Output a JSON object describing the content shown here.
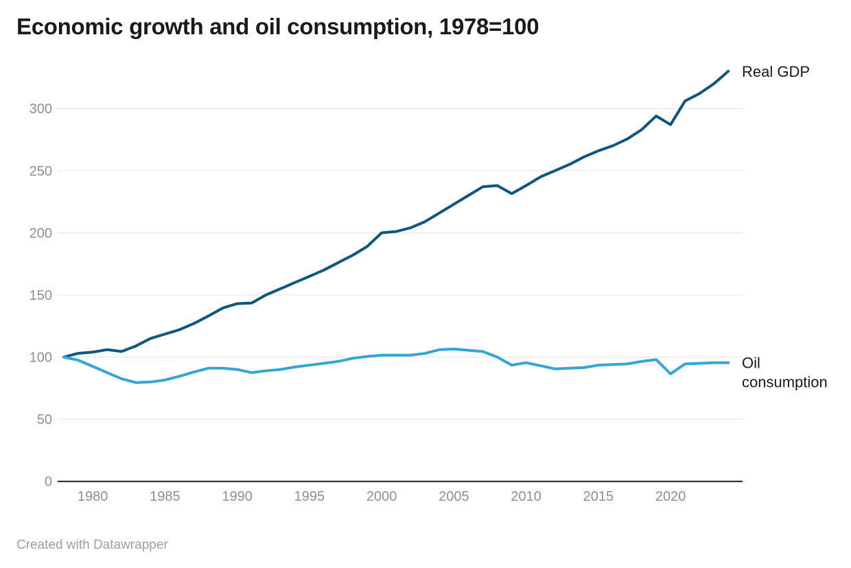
{
  "header": {
    "title": "Economic growth and oil consumption, 1978=100"
  },
  "footer": {
    "credit": "Created with Datawrapper"
  },
  "colors": {
    "gdp_line": "#0d567f",
    "oil_line": "#33a6d7",
    "gridline": "#e4e4e4",
    "axis": "#1f1f1f",
    "tick_label": "#8f8f8f",
    "series_label": "#1a1a1a",
    "title": "#1a1a1a",
    "credit": "#9e9e9e"
  },
  "chart_data": {
    "type": "line",
    "title": "Economic growth and oil consumption, 1978=100",
    "xlabel": "",
    "ylabel": "",
    "grid": "horizontal",
    "legend_position": "line-end-labels",
    "xlim": [
      1978,
      2024
    ],
    "ylim": [
      0,
      335
    ],
    "x_ticks": [
      1980,
      1985,
      1990,
      1995,
      2000,
      2005,
      2010,
      2015,
      2020
    ],
    "y_ticks": [
      0,
      50,
      100,
      150,
      200,
      250,
      300
    ],
    "x": [
      1978,
      1979,
      1980,
      1981,
      1982,
      1983,
      1984,
      1985,
      1986,
      1987,
      1988,
      1989,
      1990,
      1991,
      1992,
      1993,
      1994,
      1995,
      1996,
      1997,
      1998,
      1999,
      2000,
      2001,
      2002,
      2003,
      2004,
      2005,
      2006,
      2007,
      2008,
      2009,
      2010,
      2011,
      2012,
      2013,
      2014,
      2015,
      2016,
      2017,
      2018,
      2019,
      2020,
      2021,
      2022,
      2023,
      2024
    ],
    "series": [
      {
        "name": "Real GDP",
        "label_lines": [
          "Real GDP"
        ],
        "color": "#0d567f",
        "values": [
          100,
          103,
          104,
          106,
          104.5,
          109,
          115,
          118.5,
          122,
          127,
          133,
          139.5,
          143,
          143.5,
          150,
          155,
          160,
          165,
          170,
          176,
          182,
          189,
          200,
          201,
          204,
          209,
          216,
          223,
          230,
          237,
          238,
          231.5,
          238,
          245,
          250,
          255,
          261,
          266,
          270,
          275.5,
          283,
          294,
          287,
          306,
          312,
          320,
          330
        ]
      },
      {
        "name": "Oil consumption",
        "label_lines": [
          "Oil",
          "consumption"
        ],
        "color": "#33a6d7",
        "values": [
          100,
          97.5,
          92.5,
          87.5,
          82.5,
          79.5,
          80,
          81.5,
          84.5,
          88,
          91,
          91,
          90,
          87.5,
          89,
          90,
          92,
          93.5,
          95,
          96.5,
          99,
          100.5,
          101.5,
          101.5,
          101.5,
          103,
          106,
          106.5,
          105.5,
          104.5,
          100,
          93.5,
          95.5,
          93,
          90.5,
          91,
          91.5,
          93.5,
          94,
          94.5,
          96.5,
          98,
          86.5,
          94.5,
          95,
          95.5,
          95.5
        ]
      }
    ]
  }
}
